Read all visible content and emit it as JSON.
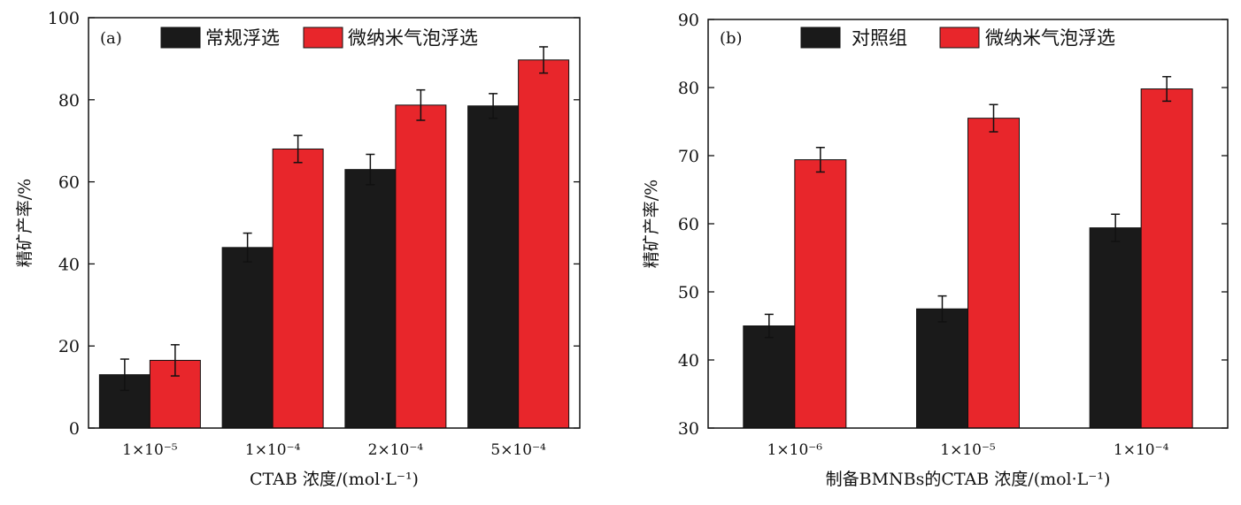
{
  "chart_data": [
    {
      "panel": "(a)",
      "type": "bar",
      "categories": [
        "1×10⁻⁵",
        "1×10⁻⁴",
        "2×10⁻⁴",
        "5×10⁻⁴"
      ],
      "series": [
        {
          "name": "常规浮选",
          "color": "#1a1a1a",
          "values": [
            13.0,
            44.0,
            63.0,
            78.5
          ],
          "errors": [
            3.8,
            3.5,
            3.7,
            3.0
          ]
        },
        {
          "name": "微纳米气泡浮选",
          "color": "#e8262b",
          "values": [
            16.5,
            68.0,
            78.7,
            89.7
          ],
          "errors": [
            3.8,
            3.3,
            3.7,
            3.2
          ]
        }
      ],
      "xlabel": "CTAB 浓度/(mol·L⁻¹)",
      "ylabel": "精矿产率/%",
      "ylim": [
        0,
        100
      ],
      "yticks": [
        0,
        20,
        40,
        60,
        80,
        100
      ],
      "legend_position": "top"
    },
    {
      "panel": "(b)",
      "type": "bar",
      "categories": [
        "1×10⁻⁶",
        "1×10⁻⁵",
        "1×10⁻⁴"
      ],
      "series": [
        {
          "name": "对照组",
          "color": "#1a1a1a",
          "values": [
            45.0,
            47.5,
            59.4
          ],
          "errors": [
            1.7,
            1.9,
            2.0
          ]
        },
        {
          "name": "微纳米气泡浮选",
          "color": "#e8262b",
          "values": [
            69.4,
            75.5,
            79.8
          ],
          "errors": [
            1.8,
            2.0,
            1.8
          ]
        }
      ],
      "xlabel": "制备BMNBs的CTAB 浓度/(mol·L⁻¹)",
      "ylabel": "精矿产率/%",
      "ylim": [
        30,
        90
      ],
      "yticks": [
        30,
        40,
        50,
        60,
        70,
        80,
        90
      ],
      "legend_position": "top"
    }
  ]
}
